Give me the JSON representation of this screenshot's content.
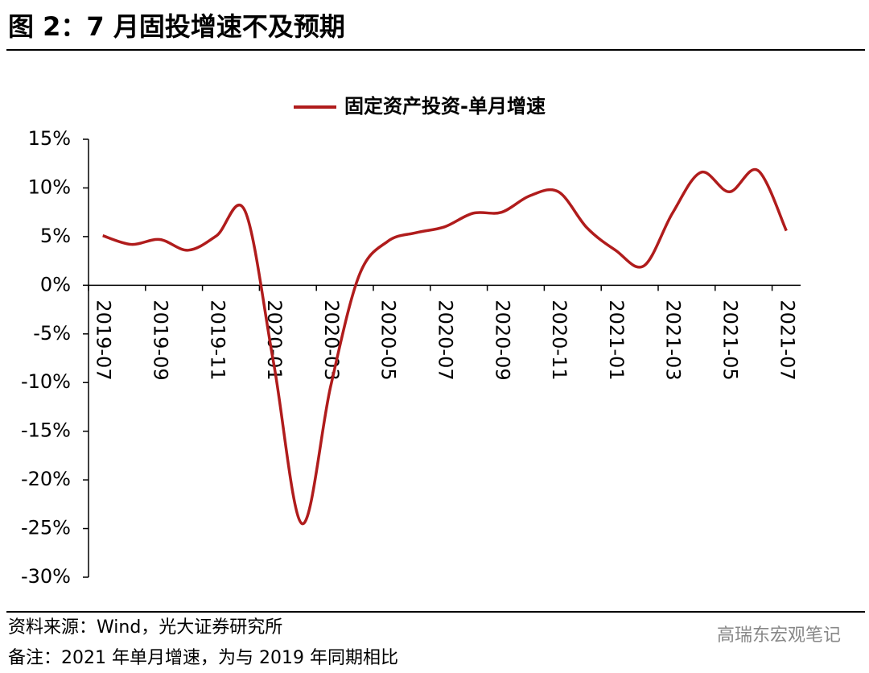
{
  "chart_data": {
    "type": "line",
    "title": "图 2：7 月固投增速不及预期",
    "categories": [
      "2019-07",
      null,
      "2019-09",
      null,
      "2019-11",
      null,
      "2020-01",
      null,
      "2020-03",
      null,
      "2020-05",
      null,
      "2020-07",
      null,
      "2020-09",
      null,
      "2020-11",
      null,
      "2021-01",
      null,
      "2021-03",
      null,
      "2021-05",
      null,
      "2021-07"
    ],
    "series": [
      {
        "name": "固定资产投资-单月增速",
        "color": "#b01c1c",
        "values": [
          5.1,
          4.2,
          4.7,
          3.6,
          5.1,
          7.6,
          -8.0,
          -24.5,
          -10.4,
          1.0,
          4.5,
          5.4,
          6.0,
          7.4,
          7.5,
          9.2,
          9.6,
          5.9,
          3.6,
          2.0,
          7.4,
          11.6,
          9.6,
          11.8,
          5.6
        ]
      }
    ],
    "ylim": [
      -30,
      15
    ],
    "yticks": [
      {
        "value": -30,
        "label": "-30%"
      },
      {
        "value": -25,
        "label": "-25%"
      },
      {
        "value": -20,
        "label": "-20%"
      },
      {
        "value": -15,
        "label": "-15%"
      },
      {
        "value": -10,
        "label": "-10%"
      },
      {
        "value": -5,
        "label": "-5%"
      },
      {
        "value": 0,
        "label": "0%"
      },
      {
        "value": 5,
        "label": "5%"
      },
      {
        "value": 10,
        "label": "10%"
      },
      {
        "value": 15,
        "label": "15%"
      }
    ],
    "legend": "top",
    "source": "资料来源：Wind，光大证券研究所",
    "note": "备注：2021 年单月增速，为与 2019 年同期相比",
    "watermark": "高瑞东宏观笔记"
  }
}
